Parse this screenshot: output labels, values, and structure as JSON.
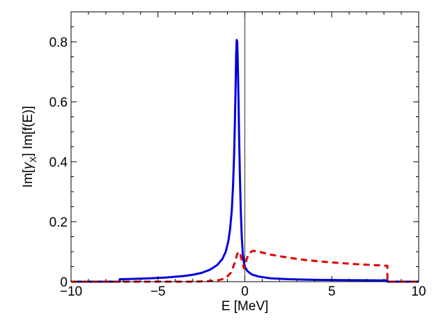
{
  "chart_data": {
    "type": "line",
    "title": "",
    "xlabel": "E [MeV]",
    "ylabel": {
      "prefix": "Im[",
      "gamma": "γ",
      "sub": "X",
      "suffix": "] Im[f(E)]"
    },
    "xlim": [
      -10,
      10
    ],
    "ylim": [
      0,
      0.9
    ],
    "x_ticks": [
      -10,
      -5,
      0,
      5,
      10
    ],
    "x_tick_labels": [
      "−10",
      "−5",
      "0",
      "5",
      "10"
    ],
    "y_ticks": [
      0,
      0.2,
      0.4,
      0.6,
      0.8
    ],
    "y_tick_labels": [
      "0",
      "0.2",
      "0.4",
      "0.6",
      "0.8"
    ],
    "grid": false,
    "reference_line_x": 0,
    "series": [
      {
        "style": "solid",
        "color": "#0000e0",
        "points": [
          [
            -10,
            0.0
          ],
          [
            -7.2,
            0.0
          ],
          [
            -7.2,
            0.008
          ],
          [
            -6.5,
            0.009
          ],
          [
            -5.5,
            0.011
          ],
          [
            -4.5,
            0.014
          ],
          [
            -3.5,
            0.019
          ],
          [
            -3.0,
            0.023
          ],
          [
            -2.5,
            0.029
          ],
          [
            -2.0,
            0.04
          ],
          [
            -1.6,
            0.055
          ],
          [
            -1.3,
            0.075
          ],
          [
            -1.1,
            0.1
          ],
          [
            -0.95,
            0.135
          ],
          [
            -0.85,
            0.175
          ],
          [
            -0.75,
            0.24
          ],
          [
            -0.68,
            0.32
          ],
          [
            -0.62,
            0.42
          ],
          [
            -0.57,
            0.54
          ],
          [
            -0.53,
            0.66
          ],
          [
            -0.5,
            0.76
          ],
          [
            -0.47,
            0.806
          ],
          [
            -0.44,
            0.8
          ],
          [
            -0.41,
            0.74
          ],
          [
            -0.37,
            0.62
          ],
          [
            -0.33,
            0.48
          ],
          [
            -0.28,
            0.34
          ],
          [
            -0.23,
            0.23
          ],
          [
            -0.18,
            0.15
          ],
          [
            -0.12,
            0.095
          ],
          [
            -0.06,
            0.065
          ],
          [
            0.0,
            0.05
          ],
          [
            0.15,
            0.035
          ],
          [
            0.4,
            0.024
          ],
          [
            0.8,
            0.017
          ],
          [
            1.5,
            0.011
          ],
          [
            2.5,
            0.008
          ],
          [
            4.0,
            0.006
          ],
          [
            6.0,
            0.005
          ],
          [
            8.2,
            0.004
          ],
          [
            8.2,
            0.0
          ],
          [
            10,
            0.0
          ]
        ]
      },
      {
        "style": "dashed",
        "color": "#e00000",
        "points": [
          [
            -10,
            0.0
          ],
          [
            -3.0,
            0.0
          ],
          [
            -2.0,
            0.002
          ],
          [
            -1.5,
            0.005
          ],
          [
            -1.1,
            0.012
          ],
          [
            -0.8,
            0.03
          ],
          [
            -0.6,
            0.06
          ],
          [
            -0.45,
            0.09
          ],
          [
            -0.35,
            0.1
          ],
          [
            -0.25,
            0.09
          ],
          [
            -0.15,
            0.065
          ],
          [
            -0.05,
            0.045
          ],
          [
            0.0,
            0.048
          ],
          [
            0.1,
            0.075
          ],
          [
            0.25,
            0.095
          ],
          [
            0.45,
            0.103
          ],
          [
            0.8,
            0.1
          ],
          [
            1.5,
            0.09
          ],
          [
            2.5,
            0.08
          ],
          [
            3.5,
            0.072
          ],
          [
            5.0,
            0.064
          ],
          [
            6.5,
            0.058
          ],
          [
            8.2,
            0.053
          ],
          [
            8.2,
            0.0
          ],
          [
            10,
            0.0
          ]
        ]
      }
    ]
  }
}
